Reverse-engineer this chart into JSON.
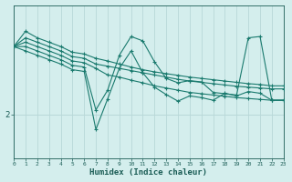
{
  "xlabel": "Humidex (Indice chaleur)",
  "bg_color": "#d4eeed",
  "line_color": "#1a7a6e",
  "grid_color": "#b8d8d8",
  "axis_color": "#1a5c55",
  "text_color": "#1a5c55",
  "xlim": [
    0,
    23
  ],
  "ylim": [
    1.0,
    4.5
  ],
  "ytick_values": [
    2.0
  ],
  "ytick_labels": [
    "2"
  ],
  "x_ticks": [
    0,
    1,
    2,
    3,
    4,
    5,
    6,
    7,
    8,
    9,
    10,
    11,
    12,
    13,
    14,
    15,
    16,
    17,
    18,
    19,
    20,
    21,
    22,
    23
  ],
  "series": [
    [
      3.55,
      3.9,
      3.75,
      3.65,
      3.55,
      3.42,
      3.38,
      3.28,
      3.22,
      3.15,
      3.08,
      3.02,
      2.97,
      2.93,
      2.89,
      2.85,
      2.82,
      2.79,
      2.76,
      2.73,
      2.7,
      2.68,
      2.65,
      2.65
    ],
    [
      3.55,
      3.75,
      3.65,
      3.55,
      3.45,
      3.32,
      3.28,
      3.15,
      3.1,
      3.05,
      3.0,
      2.95,
      2.9,
      2.85,
      2.8,
      2.76,
      2.73,
      2.7,
      2.67,
      2.64,
      2.62,
      2.6,
      2.58,
      2.58
    ],
    [
      3.55,
      3.65,
      3.55,
      3.45,
      3.35,
      3.22,
      3.18,
      3.05,
      2.9,
      2.85,
      2.78,
      2.72,
      2.65,
      2.6,
      2.55,
      2.5,
      2.47,
      2.44,
      2.41,
      2.38,
      2.36,
      2.34,
      2.32,
      2.32
    ],
    [
      3.55,
      3.55,
      3.45,
      3.35,
      3.25,
      3.12,
      3.08,
      2.1,
      2.55,
      3.35,
      3.78,
      3.68,
      3.2,
      2.82,
      2.72,
      2.77,
      2.74,
      2.5,
      2.47,
      2.44,
      3.75,
      3.78,
      2.32,
      2.32
    ],
    [
      3.55,
      3.45,
      3.35,
      3.25,
      3.15,
      3.02,
      2.98,
      1.65,
      2.35,
      3.05,
      3.45,
      2.95,
      2.62,
      2.45,
      2.3,
      2.42,
      2.38,
      2.32,
      2.48,
      2.42,
      2.52,
      2.48,
      2.32,
      2.32
    ]
  ]
}
